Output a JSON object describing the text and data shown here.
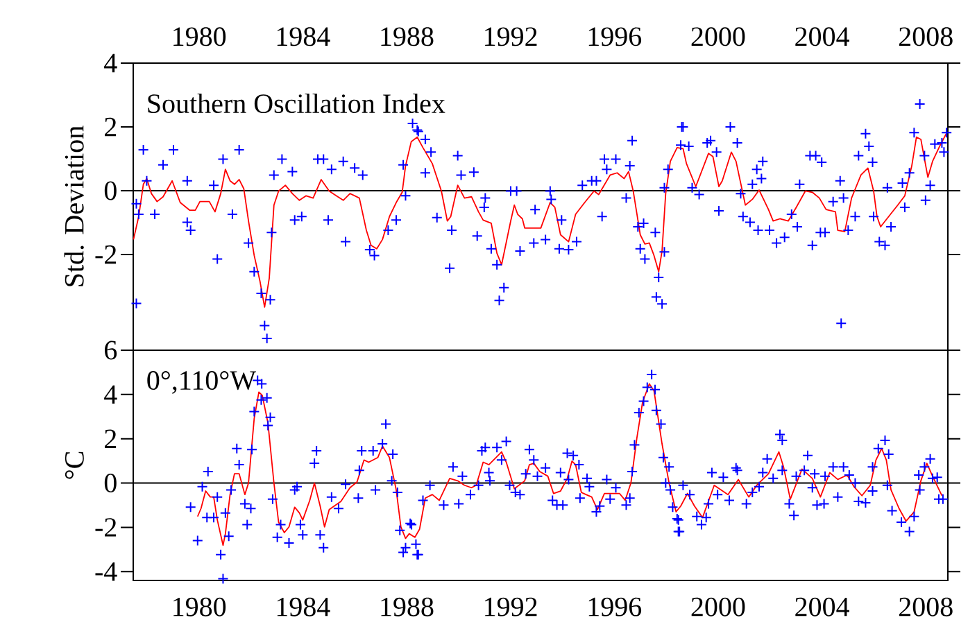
{
  "chart_data": [
    {
      "type": "scatter",
      "ylabel": "Std. Deviation",
      "annotations": [
        "Southern Oscillation Index"
      ],
      "marker": "cross",
      "xlim": [
        1977.97,
        2009.35
      ],
      "xticks": [
        {
          "value": 1980.5,
          "label": "1980"
        },
        {
          "value": 1984.5,
          "label": "1984"
        },
        {
          "value": 1988.5,
          "label": "1988"
        },
        {
          "value": 1992.5,
          "label": "1992"
        },
        {
          "value": 1996.5,
          "label": "1996"
        },
        {
          "value": 2000.5,
          "label": "2000"
        },
        {
          "value": 2004.5,
          "label": "2004"
        },
        {
          "value": 2008.5,
          "label": "2008"
        }
      ],
      "ylim": [
        -5,
        4
      ],
      "yticks": [
        4,
        2,
        0,
        -2
      ],
      "ref_lines": [
        {
          "axis": "y",
          "value": 0,
          "color": "#000000"
        }
      ],
      "series": [
        {
          "color": "#0000ff",
          "x": [
            1978.09,
            1978.09,
            1978.36,
            1978.18,
            1978.49,
            1979.12,
            1979.52,
            1978.8,
            1980.05,
            1980.18,
            1980.05,
            1981.21,
            1981.43,
            1982.05,
            1981.79,
            1981.07,
            1982.41,
            1982.63,
            1982.9,
            1983.03,
            1983.12,
            1983.25,
            1983.3,
            1983.39,
            1983.7,
            1984.1,
            1984.19,
            1984.46,
            1985.08,
            1985.3,
            1985.61,
            1986.06,
            1986.5,
            1986.81,
            1985.48,
            1986.15,
            1987.26,
            1987.08,
            1987.79,
            1988.1,
            1988.37,
            1988.73,
            1988.91,
            1988.46,
            1988.95,
            1989.22,
            1989.44,
            1989.22,
            1990.47,
            1990.6,
            1991.09,
            1989.67,
            1990.16,
            1990.24,
            1991.53,
            1991.49,
            1991.22,
            1991.76,
            1992.07,
            1992.25,
            1991.98,
            1992.51,
            1992.74,
            1992.87,
            1993.45,
            1993.4,
            1993.85,
            1994.03,
            1994.07,
            1994.47,
            1994.38,
            1994.74,
            1995.05,
            1995.27,
            1995.63,
            1995.81,
            1996.03,
            1996.12,
            1996.56,
            1996.21,
            1996.96,
            1997.19,
            1997.1,
            1997.41,
            1997.63,
            1997.5,
            1997.68,
            1998.08,
            1998.21,
            1998.12,
            1998.34,
            1998.43,
            1998.43,
            1998.57,
            1999.1,
            1999.06,
            1999.15,
            1999.37,
            1999.5,
            1999.77,
            2000.08,
            2000.21,
            2000.44,
            2000.53,
            2000.97,
            2001.24,
            2001.37,
            2001.46,
            2001.73,
            2001.82,
            2001.99,
            2002.22,
            2002.17,
            2002.04,
            2002.48,
            2002.75,
            2003.06,
            2003.33,
            2003.55,
            2003.64,
            2004.04,
            2004.26,
            2004.49,
            2004.13,
            2004.44,
            2004.62,
            2004.93,
            2005.2,
            2005.24,
            2005.33,
            2005.51,
            2005.78,
            2005.91,
            2006.18,
            2006.31,
            2006.45,
            2006.49,
            2006.71,
            2006.93,
            2007.16,
            2007.02,
            2007.69,
            2007.6,
            2007.87,
            2008.05,
            2008.27,
            2008.45,
            2008.49,
            2008.67,
            2008.85,
            2009.12,
            2009.2,
            2009.3
          ],
          "values": [
            -0.41,
            -3.53,
            1.28,
            -0.74,
            0.31,
            0.81,
            1.28,
            -0.74,
            0.31,
            -1.24,
            -0.99,
            -2.14,
            0.99,
            1.28,
            -0.74,
            0.17,
            -1.64,
            -2.54,
            -3.22,
            -4.23,
            -4.63,
            -3.42,
            -1.31,
            0.49,
            0.99,
            0.6,
            -0.92,
            -0.81,
            0.99,
            0.99,
            0.67,
            0.92,
            0.71,
            0.49,
            -0.92,
            -1.6,
            -2.03,
            -1.85,
            -1.24,
            -0.92,
            0.81,
            2.11,
            1.9,
            -0.16,
            1.86,
            1.61,
            1.21,
            0.56,
            1.1,
            0.49,
            0.58,
            -0.84,
            -2.43,
            -1.24,
            -0.23,
            -0.52,
            -1.42,
            -1.82,
            -3.44,
            -3.04,
            -2.32,
            -0.01,
            -0.01,
            -1.89,
            -0.59,
            -1.64,
            -1.53,
            -0.01,
            -0.27,
            -0.92,
            -1.82,
            -1.85,
            -1.6,
            0.17,
            0.31,
            0.31,
            -0.81,
            0.99,
            0.99,
            0.67,
            -0.23,
            1.57,
            0.78,
            -1.13,
            -1.02,
            -1.82,
            -2.14,
            -1.31,
            -2.72,
            -3.33,
            -3.55,
            -1.92,
            0.09,
            0.67,
            2.0,
            1.43,
            2.0,
            1.39,
            0.09,
            -0.12,
            1.5,
            1.57,
            1.21,
            -0.63,
            2.0,
            1.5,
            -0.09,
            -0.81,
            -0.99,
            0.2,
            0.67,
            0.92,
            0.38,
            -1.24,
            -1.24,
            -1.64,
            -1.46,
            -0.74,
            -1.13,
            0.2,
            1.1,
            1.1,
            0.89,
            -1.71,
            -1.31,
            -1.31,
            -0.34,
            0.31,
            -4.16,
            -0.23,
            -1.24,
            -0.81,
            1.1,
            1.79,
            1.39,
            0.89,
            -0.81,
            -1.6,
            -1.71,
            -1.13,
            0.09,
            -0.52,
            0.24,
            0.56,
            1.82,
            2.72,
            1.1,
            -0.3,
            0.17,
            1.46,
            1.5,
            1.21,
            1.82
          ]
        },
        {
          "type": "line",
          "marker": "none",
          "color": "#ff0000",
          "x": [
            1977.98,
            1978.18,
            1978.36,
            1978.49,
            1978.67,
            1978.89,
            1979.12,
            1979.47,
            1979.78,
            1980.14,
            1980.36,
            1980.54,
            1980.9,
            1981.12,
            1981.34,
            1981.52,
            1981.7,
            1981.87,
            1982.05,
            1982.23,
            1982.41,
            1982.63,
            1982.85,
            1983.03,
            1983.21,
            1983.39,
            1983.57,
            1983.83,
            1984.1,
            1984.37,
            1984.63,
            1984.9,
            1985.21,
            1985.52,
            1985.79,
            1986.06,
            1986.32,
            1986.68,
            1986.95,
            1987.13,
            1987.35,
            1987.57,
            1987.84,
            1988.1,
            1988.33,
            1988.46,
            1988.68,
            1988.91,
            1989.13,
            1989.49,
            1989.84,
            1990.07,
            1990.2,
            1990.47,
            1990.73,
            1991.0,
            1991.27,
            1991.45,
            1991.76,
            1991.98,
            1992.16,
            1992.51,
            1992.65,
            1992.78,
            1992.96,
            1993.05,
            1993.32,
            1993.67,
            1994.03,
            1994.21,
            1994.43,
            1994.74,
            1995.01,
            1995.36,
            1995.72,
            1995.9,
            1996.34,
            1996.61,
            1996.88,
            1997.05,
            1997.23,
            1997.5,
            1997.68,
            1997.85,
            1998.03,
            1998.21,
            1998.34,
            1998.48,
            1998.66,
            1998.92,
            1999.15,
            1999.28,
            1999.64,
            2000.13,
            2000.3,
            2000.53,
            2000.66,
            2001.01,
            2001.19,
            2001.55,
            2001.82,
            2002.08,
            2002.44,
            2002.62,
            2002.88,
            2003.2,
            2003.51,
            2003.86,
            2004.13,
            2004.4,
            2004.66,
            2005.02,
            2005.11,
            2005.38,
            2005.64,
            2005.82,
            2006.0,
            2006.27,
            2006.49,
            2006.62,
            2006.76,
            2007.07,
            2007.42,
            2007.69,
            2007.96,
            2008.14,
            2008.31,
            2008.58,
            2008.76,
            2009.03,
            2009.29
          ],
          "values": [
            -1.53,
            -0.81,
            0.2,
            0.38,
            -0.09,
            -0.34,
            -0.19,
            0.31,
            -0.37,
            -0.61,
            -0.61,
            -0.34,
            -0.34,
            -0.66,
            -0.09,
            0.67,
            0.31,
            0.2,
            0.35,
            0.06,
            -0.95,
            -2.03,
            -2.83,
            -3.65,
            -2.74,
            -0.45,
            -0.01,
            0.17,
            -0.09,
            -0.3,
            -0.16,
            -0.23,
            0.35,
            -0.01,
            -0.16,
            -0.3,
            -0.09,
            -0.23,
            -1.24,
            -1.71,
            -1.82,
            -1.53,
            -0.81,
            -0.37,
            -0.05,
            0.78,
            1.54,
            1.68,
            1.35,
            0.85,
            -0.01,
            -0.95,
            -0.81,
            0.17,
            -0.23,
            -0.19,
            -0.66,
            -0.92,
            -1.02,
            -1.96,
            -2.32,
            -0.95,
            -0.45,
            -0.74,
            -0.88,
            -1.17,
            -1.17,
            -1.17,
            -0.37,
            -0.52,
            -1.38,
            -1.6,
            -0.74,
            -0.37,
            -0.01,
            -0.12,
            0.49,
            0.56,
            0.38,
            0.6,
            -0.01,
            -1.38,
            -1.67,
            -1.64,
            -2.03,
            -2.54,
            -1.89,
            -0.09,
            0.92,
            1.35,
            1.32,
            0.85,
            0.13,
            1.17,
            1.07,
            0.13,
            0.31,
            1.21,
            0.92,
            -0.45,
            -0.27,
            0.02,
            -0.59,
            -0.95,
            -0.88,
            -0.95,
            -0.52,
            -0.01,
            -0.05,
            -0.23,
            -0.59,
            -0.66,
            -1.24,
            -1.28,
            -0.23,
            0.13,
            0.49,
            0.71,
            -0.01,
            -0.81,
            -1.13,
            -0.81,
            -0.45,
            -0.16,
            0.78,
            1.68,
            1.61,
            0.42,
            0.92,
            1.39,
            1.79
          ]
        }
      ]
    },
    {
      "type": "scatter",
      "ylabel": "°C",
      "annotations": [
        "0°,110°W"
      ],
      "marker": "cross",
      "xlim": [
        1977.97,
        2009.35
      ],
      "xticks": [
        {
          "value": 1980.5,
          "label": "1980"
        },
        {
          "value": 1984.5,
          "label": "1984"
        },
        {
          "value": 1988.5,
          "label": "1988"
        },
        {
          "value": 1992.5,
          "label": "1992"
        },
        {
          "value": 1996.5,
          "label": "1996"
        },
        {
          "value": 2000.5,
          "label": "2000"
        },
        {
          "value": 2004.5,
          "label": "2004"
        },
        {
          "value": 2008.5,
          "label": "2008"
        }
      ],
      "ylim": [
        -4.4,
        6
      ],
      "yticks": [
        6,
        4,
        2,
        0,
        -2,
        -4
      ],
      "ref_lines": [
        {
          "axis": "y",
          "value": 0,
          "color": "#000000"
        }
      ],
      "series": [
        {
          "color": "#0000ff",
          "x": [
            1980.18,
            1980.45,
            1980.85,
            1980.63,
            1981.21,
            1980.81,
            1981.07,
            1981.34,
            1981.43,
            1981.65,
            1981.52,
            1981.74,
            1981.96,
            1982.05,
            1982.36,
            1982.27,
            1982.5,
            1982.54,
            1982.63,
            1982.76,
            1982.92,
            1982.9,
            1983.12,
            1983.25,
            1983.16,
            1983.34,
            1983.52,
            1983.65,
            1983.97,
            1984.19,
            1984.28,
            1984.41,
            1984.5,
            1985.03,
            1984.95,
            1985.17,
            1985.3,
            1985.61,
            1985.88,
            1986.15,
            1986.64,
            1986.68,
            1986.77,
            1987.21,
            1987.3,
            1987.7,
            1987.57,
            1987.97,
            1987.93,
            1988.15,
            1988.24,
            1988.37,
            1988.46,
            1988.64,
            1988.91,
            1988.69,
            1988.95,
            1988.86,
            1989.13,
            1989.4,
            1989.93,
            1990.29,
            1990.51,
            1990.65,
            1990.96,
            1991.27,
            1991.4,
            1991.53,
            1991.67,
            1991.71,
            1991.98,
            1992.34,
            1992.16,
            1992.47,
            1992.69,
            1992.87,
            1993.09,
            1993.23,
            1993.4,
            1993.54,
            1993.85,
            1994.12,
            1994.29,
            1994.52,
            1994.43,
            1994.74,
            1994.69,
            1994.92,
            1995.14,
            1995.18,
            1995.45,
            1995.54,
            1995.81,
            1995.94,
            1996.21,
            1996.34,
            1996.56,
            1996.96,
            1997.1,
            1997.19,
            1997.28,
            1997.45,
            1997.63,
            1997.77,
            1997.94,
            1998.07,
            1998.12,
            1998.3,
            1998.39,
            1998.61,
            1998.48,
            1998.66,
            1998.75,
            1998.92,
            1998.97,
            1999.01,
            1998.97,
            1999.15,
            1999.41,
            1999.68,
            1999.86,
            2000.04,
            2000.13,
            2000.26,
            2000.48,
            2000.7,
            2000.93,
            2001.19,
            2001.24,
            2001.59,
            2001.82,
            2002.08,
            2002.22,
            2002.39,
            2002.62,
            2002.88,
            2002.97,
            2002.97,
            2003.24,
            2003.42,
            2003.51,
            2003.95,
            2003.82,
            2004.22,
            2004.13,
            2004.31,
            2004.58,
            2004.62,
            2004.93,
            2005.11,
            2005.33,
            2005.55,
            2005.78,
            2005.91,
            2006.18,
            2006.45,
            2006.45,
            2006.67,
            2006.93,
            2007.07,
            2007.02,
            2007.2,
            2007.56,
            2007.87,
            2008.05,
            2008.27,
            2008.23,
            2008.45,
            2008.67,
            2008.76,
            2008.94,
            2009.0,
            2009.16
          ],
          "values": [
            -1.09,
            -2.6,
            0.52,
            -0.16,
            -0.63,
            -1.56,
            -1.56,
            -3.23,
            -4.32,
            -2.4,
            -1.35,
            -0.31,
            1.56,
            0.83,
            -1.88,
            -0.94,
            -1.15,
            1.51,
            3.23,
            4.64,
            4.48,
            3.75,
            3.85,
            2.97,
            2.6,
            -0.73,
            -2.45,
            -1.88,
            -2.71,
            -0.31,
            -0.16,
            -1.88,
            -2.34,
            1.46,
            0.89,
            -2.34,
            -2.92,
            -0.63,
            -1.15,
            -0.05,
            -0.68,
            0.57,
            1.46,
            1.46,
            -0.31,
            2.66,
            1.77,
            1.3,
            0.1,
            -0.42,
            -2.14,
            -3.13,
            -2.92,
            -1.82,
            -3.23,
            -1.88,
            -3.23,
            -2.76,
            -0.78,
            -0.1,
            -0.99,
            0.73,
            -0.94,
            0.31,
            -0.52,
            -0.1,
            1.46,
            1.61,
            0.47,
            0.1,
            1.61,
            1.88,
            1.04,
            -0.1,
            -0.42,
            -0.52,
            0.42,
            1.51,
            1.04,
            0.31,
            0.68,
            -0.78,
            -0.99,
            -0.99,
            0.47,
            0.16,
            1.35,
            1.25,
            0.83,
            -0.68,
            0.21,
            -0.16,
            -1.3,
            -1.04,
            0.16,
            -0.73,
            -0.21,
            -0.99,
            -0.68,
            0.52,
            1.72,
            3.18,
            3.7,
            4.32,
            4.9,
            4.22,
            3.28,
            2.66,
            1.15,
            0.73,
            0.0,
            -0.31,
            -1.09,
            -1.61,
            -2.19,
            -2.19,
            -1.67,
            -0.1,
            -0.52,
            -1.51,
            -1.88,
            -1.56,
            -0.94,
            0.47,
            -0.52,
            0.26,
            -0.78,
            0.68,
            0.57,
            -0.94,
            -0.42,
            -0.16,
            0.47,
            1.09,
            0.21,
            2.19,
            1.93,
            0.57,
            -0.94,
            -1.46,
            0.31,
            1.25,
            0.57,
            0.42,
            -0.21,
            -0.99,
            -0.94,
            0.31,
            0.73,
            -0.63,
            0.73,
            0.36,
            0.0,
            -0.83,
            -0.89,
            -0.36,
            0.73,
            1.56,
            1.93,
            1.3,
            -0.1,
            -1.25,
            -1.77,
            -2.19,
            -1.51,
            -0.31,
            0.36,
            0.73,
            1.09,
            0.21,
            0.26,
            -0.73,
            -0.73
          ]
        },
        {
          "type": "line",
          "marker": "none",
          "color": "#ff0000",
          "x": [
            1980.45,
            1980.58,
            1980.76,
            1980.94,
            1981.07,
            1981.21,
            1981.43,
            1981.52,
            1981.7,
            1981.87,
            1982.05,
            1982.27,
            1982.41,
            1982.63,
            1982.81,
            1982.94,
            1983.16,
            1983.39,
            1983.57,
            1983.79,
            1983.97,
            1984.19,
            1984.37,
            1984.5,
            1984.77,
            1984.95,
            1985.17,
            1985.34,
            1985.52,
            1985.97,
            1986.32,
            1986.59,
            1986.86,
            1987.04,
            1987.39,
            1987.57,
            1987.84,
            1988.1,
            1988.28,
            1988.46,
            1988.6,
            1988.82,
            1989.0,
            1989.22,
            1989.49,
            1989.76,
            1990.16,
            1990.47,
            1990.73,
            1991.0,
            1991.18,
            1991.45,
            1991.67,
            1992.16,
            1992.34,
            1992.65,
            1993.05,
            1993.23,
            1993.4,
            1993.63,
            1993.94,
            1994.16,
            1994.43,
            1994.69,
            1994.87,
            1995.01,
            1995.23,
            1995.41,
            1995.63,
            1995.85,
            1996.12,
            1996.43,
            1996.7,
            1996.92,
            1997.14,
            1997.37,
            1997.59,
            1997.85,
            1998.03,
            1998.34,
            1998.61,
            1998.88,
            1999.06,
            1999.32,
            1999.59,
            1999.9,
            2000.35,
            2000.88,
            2001.28,
            2001.68,
            2001.99,
            2002.44,
            2002.84,
            2003.02,
            2003.28,
            2003.73,
            2004.13,
            2004.44,
            2004.8,
            2005.11,
            2005.47,
            2005.73,
            2006.04,
            2006.36,
            2006.58,
            2006.8,
            2006.98,
            2007.16,
            2007.47,
            2007.74,
            2008.05,
            2008.31,
            2008.54,
            2008.76,
            2009.12
          ],
          "values": [
            -1.51,
            -1.15,
            -0.36,
            -0.63,
            -0.63,
            -1.67,
            -2.81,
            -2.29,
            -0.52,
            0.42,
            0.42,
            -0.52,
            0.0,
            2.92,
            4.11,
            3.96,
            2.71,
            0.0,
            -1.77,
            -2.24,
            -1.98,
            -1.09,
            -1.35,
            -1.67,
            -0.78,
            0.0,
            -1.04,
            -1.98,
            -1.2,
            -0.83,
            -0.21,
            0.05,
            1.04,
            0.94,
            1.15,
            1.67,
            1.15,
            -0.31,
            -1.98,
            -2.5,
            -2.29,
            -2.45,
            -2.08,
            -0.68,
            -0.52,
            -0.78,
            0.21,
            0.1,
            -0.1,
            -0.21,
            -0.1,
            0.94,
            0.83,
            1.41,
            0.94,
            -0.26,
            0.1,
            0.83,
            0.89,
            0.52,
            0.31,
            -0.47,
            -0.36,
            0.21,
            0.99,
            0.83,
            -0.42,
            -0.52,
            -0.63,
            -1.2,
            -0.47,
            -0.47,
            -0.47,
            -0.78,
            0.0,
            2.03,
            3.65,
            4.48,
            4.17,
            1.77,
            0.0,
            -1.3,
            -1.04,
            -0.47,
            -1.04,
            -1.56,
            -0.1,
            -0.52,
            0.16,
            -0.63,
            -0.1,
            0.42,
            1.41,
            0.73,
            -0.73,
            0.63,
            0.21,
            -0.63,
            0.47,
            0.16,
            0.36,
            -0.16,
            -0.57,
            -0.1,
            1.04,
            1.56,
            1.04,
            -0.31,
            -1.15,
            -1.72,
            -1.3,
            0.1,
            0.89,
            0.31,
            -0.57
          ]
        }
      ]
    }
  ]
}
